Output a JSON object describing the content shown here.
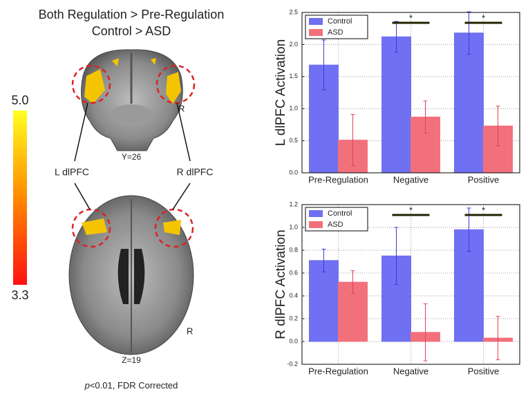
{
  "figure": {
    "title": "Both Regulation > Pre-Regulation",
    "subtitle": "Control > ASD",
    "colorbar_max": "5.0",
    "colorbar_min": "3.3",
    "left_label": "L dlPFC",
    "right_label": "R dlPFC",
    "coronal_slice": "Y=26",
    "axial_slice": "Z=19",
    "side_top": "R",
    "side_bottom": "R",
    "footnote_p": "p",
    "footnote": "<0.01, FDR Corrected"
  },
  "chart_data": [
    {
      "type": "bar",
      "ylabel": "L dlPFC Activation",
      "categories": [
        "Pre-Regulation",
        "Negative",
        "Positive"
      ],
      "series": [
        {
          "name": "Control",
          "color": "#7070f2",
          "error_color": "#3b3be0",
          "values": [
            1.68,
            2.12,
            2.18
          ],
          "errors": [
            0.39,
            0.24,
            0.33
          ]
        },
        {
          "name": "ASD",
          "color": "#f2707c",
          "error_color": "#e04456",
          "values": [
            0.51,
            0.87,
            0.73
          ],
          "errors": [
            0.4,
            0.25,
            0.31
          ]
        }
      ],
      "annotations": [
        null,
        "*",
        "*"
      ],
      "ylim": [
        0,
        2.5
      ],
      "yticks": [
        {
          "value": 0,
          "label": "0.0"
        },
        0.5,
        {
          "value": 1,
          "label": "1.0"
        },
        1.5,
        {
          "value": 2,
          "label": "2.0"
        },
        2.5
      ],
      "grid": true,
      "legend": "upper-left"
    },
    {
      "type": "bar",
      "ylabel": "R dlPFC Activation",
      "categories": [
        "Pre-Regulation",
        "Negative",
        "Positive"
      ],
      "series": [
        {
          "name": "Control",
          "color": "#7070f2",
          "error_color": "#3b3be0",
          "values": [
            0.71,
            0.75,
            0.98
          ],
          "errors": [
            0.1,
            0.25,
            0.19
          ]
        },
        {
          "name": "ASD",
          "color": "#f2707c",
          "error_color": "#e04456",
          "values": [
            0.52,
            0.08,
            0.03
          ],
          "errors": [
            0.1,
            0.25,
            0.19
          ]
        }
      ],
      "annotations": [
        null,
        "*",
        "*"
      ],
      "ylim": [
        -0.2,
        1.2
      ],
      "yticks": [
        -0.2,
        {
          "value": 0,
          "label": "0.0"
        },
        0.2,
        0.4,
        0.6,
        0.8,
        {
          "value": 1,
          "label": "1.0"
        },
        1.2
      ],
      "grid": true,
      "legend": "upper-left"
    }
  ]
}
